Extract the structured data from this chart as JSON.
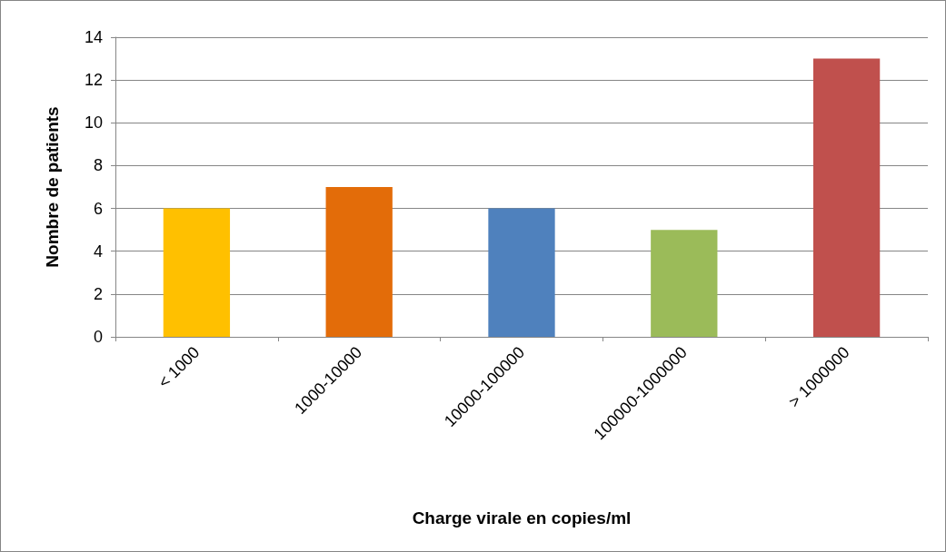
{
  "chart_data": {
    "type": "bar",
    "xlabel": "Charge virale en copies/ml",
    "ylabel": "Nombre de patients",
    "categories": [
      "< 1000",
      "1000-10000",
      "10000-100000",
      "100000-1000000",
      "> 1000000"
    ],
    "values": [
      6,
      7,
      6,
      5,
      13
    ],
    "colors": [
      "#ffc000",
      "#e36c09",
      "#4f81bd",
      "#9bbb59",
      "#c0504d"
    ],
    "ylim": [
      0,
      14
    ],
    "yticks": [
      0,
      2,
      4,
      6,
      8,
      10,
      12,
      14
    ],
    "grid": "y"
  }
}
